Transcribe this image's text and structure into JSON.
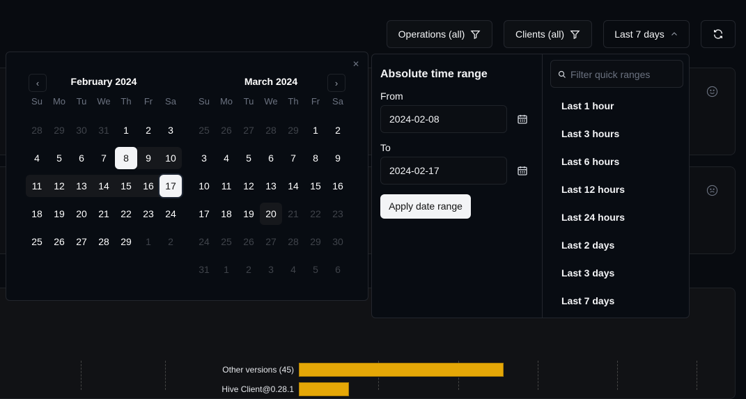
{
  "toolbar": {
    "operations": "Operations (all)",
    "clients": "Clients (all)",
    "range": "Last 7 days"
  },
  "calendar": {
    "weekdays": [
      "Su",
      "Mo",
      "Tu",
      "We",
      "Th",
      "Fr",
      "Sa"
    ],
    "months": [
      {
        "title": "February 2024",
        "days": [
          "28",
          "29",
          "30",
          "31",
          "1",
          "2",
          "3",
          "4",
          "5",
          "6",
          "7",
          "8",
          "9",
          "10",
          "11",
          "12",
          "13",
          "14",
          "15",
          "16",
          "17",
          "18",
          "19",
          "20",
          "21",
          "22",
          "23",
          "24",
          "25",
          "26",
          "27",
          "28",
          "29",
          "1",
          "2"
        ]
      },
      {
        "title": "March 2024",
        "days": [
          "25",
          "26",
          "27",
          "28",
          "29",
          "1",
          "2",
          "3",
          "4",
          "5",
          "6",
          "7",
          "8",
          "9",
          "10",
          "11",
          "12",
          "13",
          "14",
          "15",
          "16",
          "17",
          "18",
          "19",
          "20",
          "21",
          "22",
          "23",
          "24",
          "25",
          "26",
          "27",
          "28",
          "29",
          "30",
          "31",
          "1",
          "2",
          "3",
          "4",
          "5",
          "6"
        ]
      }
    ],
    "selected_from": "2024-02-08",
    "selected_to": "2024-02-17",
    "today": "2024-03-20"
  },
  "absolute": {
    "title": "Absolute time range",
    "from_label": "From",
    "from_value": "2024-02-08",
    "to_label": "To",
    "to_value": "2024-02-17",
    "apply": "Apply date range"
  },
  "quick": {
    "placeholder": "Filter quick ranges",
    "items": [
      "Last 1 hour",
      "Last 3 hours",
      "Last 6 hours",
      "Last 12 hours",
      "Last 24 hours",
      "Last 2 days",
      "Last 3 days",
      "Last 7 days"
    ]
  },
  "chart": {
    "labels": [
      "Other versions (45)",
      "Hive Client@0.28.1"
    ],
    "values": [
      45,
      11
    ],
    "color": "#e5a707"
  }
}
